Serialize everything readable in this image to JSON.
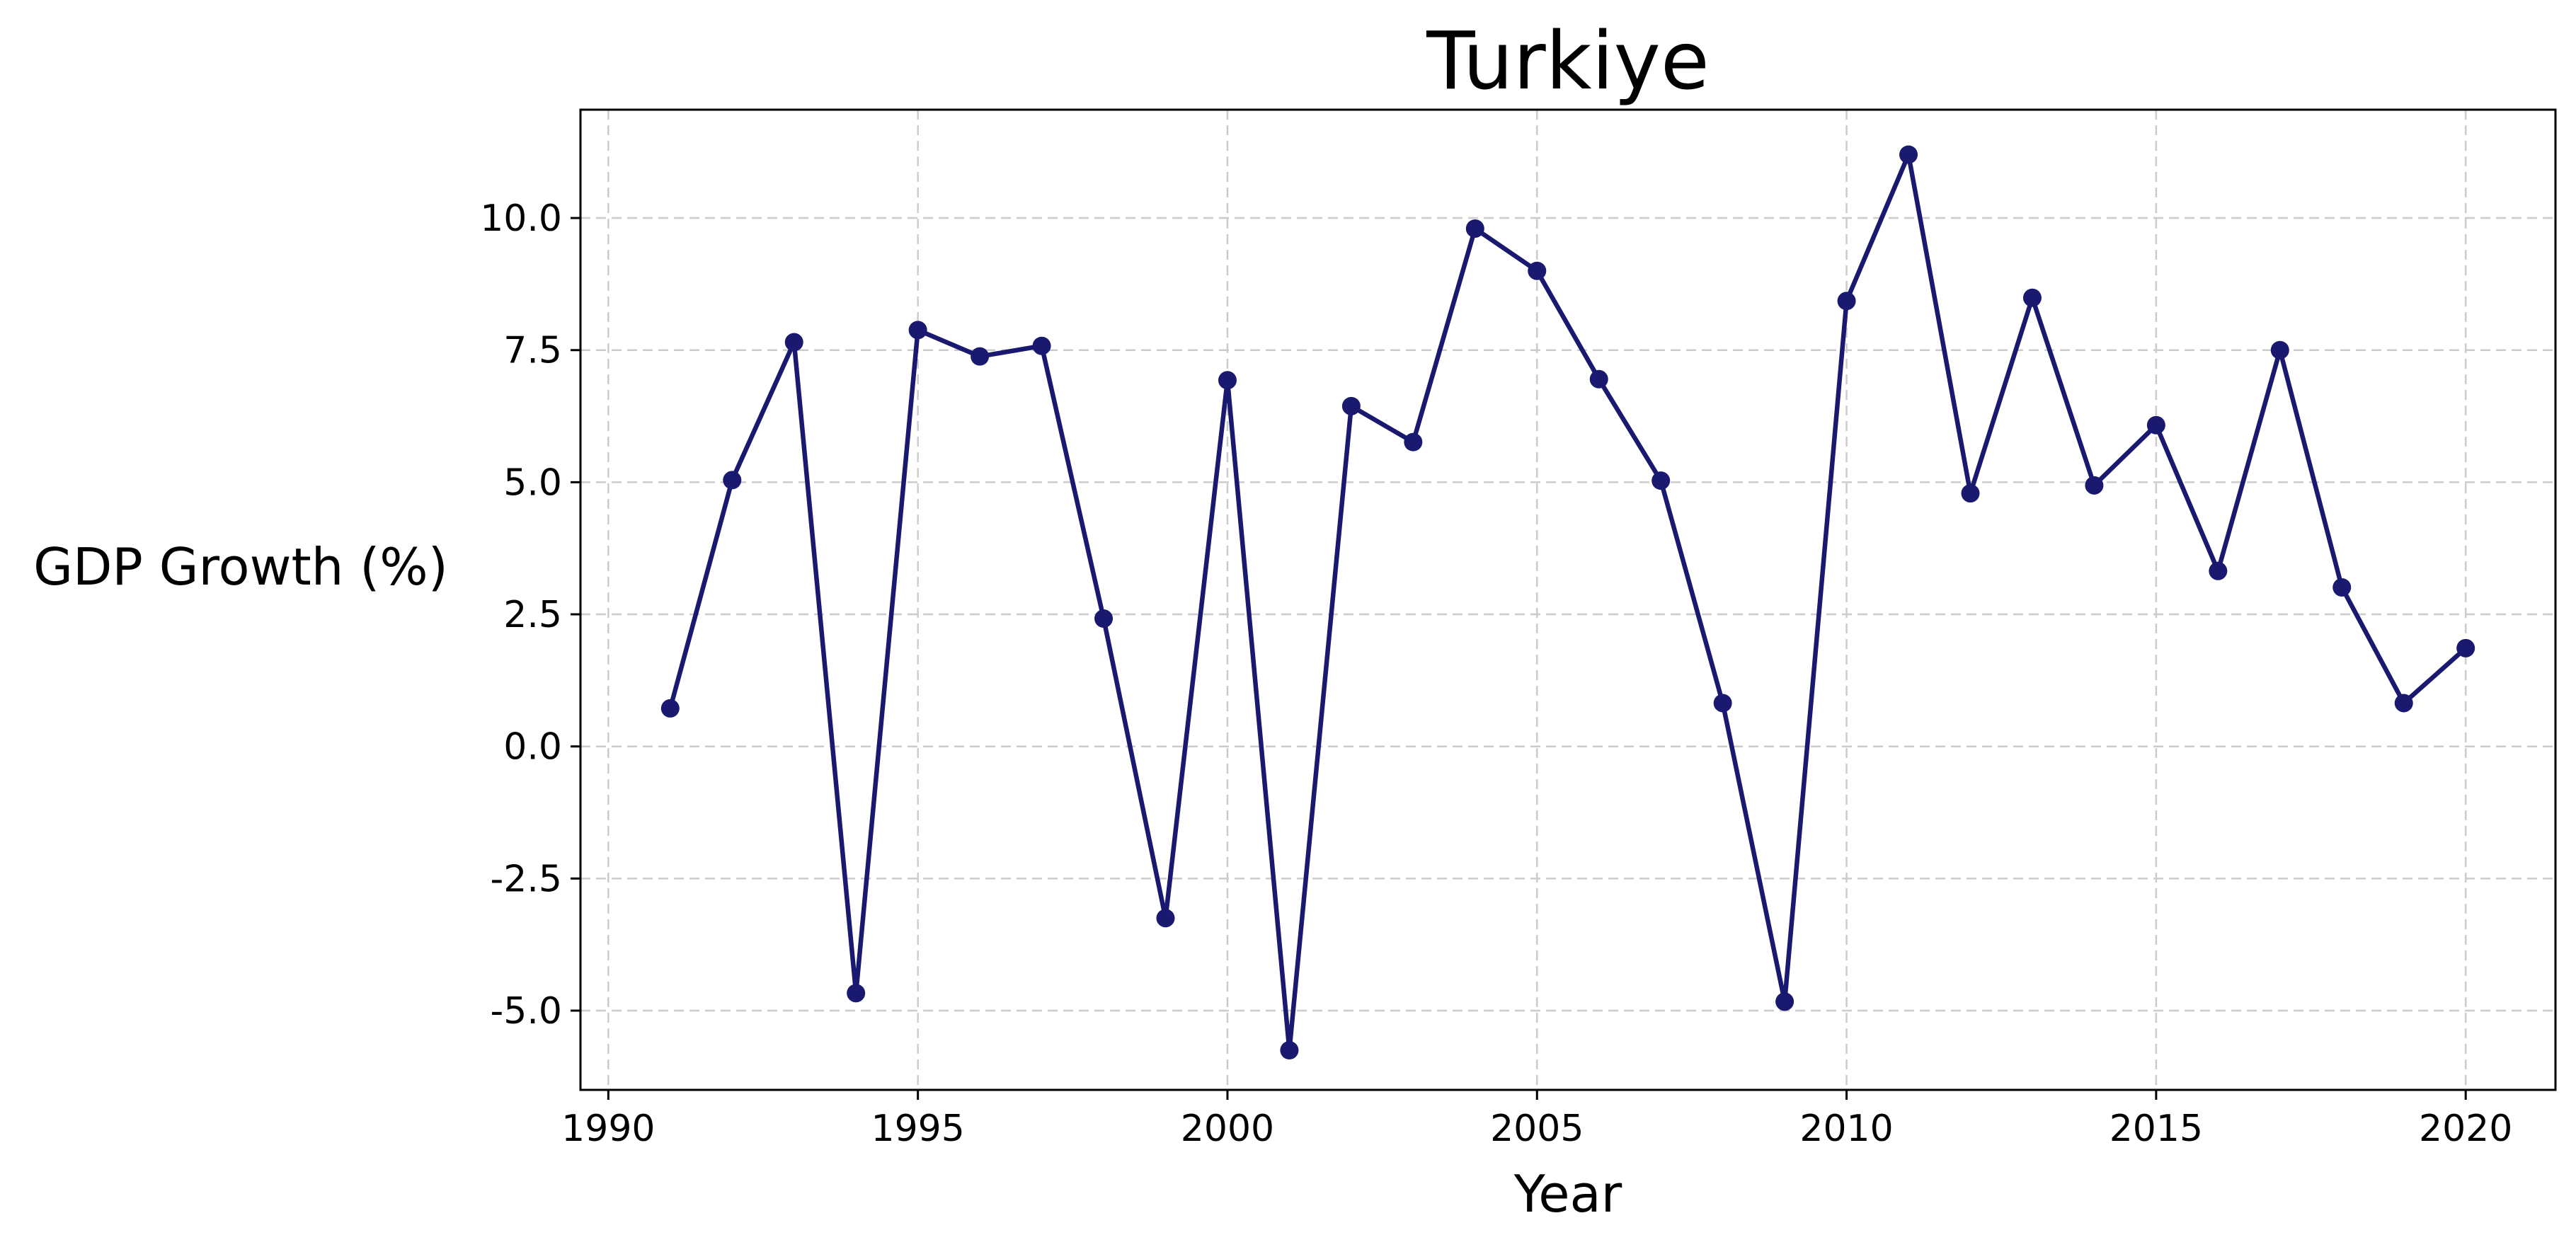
{
  "chart_data": {
    "type": "line",
    "title": "Turkiye",
    "xlabel": "Year",
    "ylabel": "GDP Growth (%)",
    "xlim": [
      1989.55,
      2021.45
    ],
    "ylim": [
      -6.5,
      12.05
    ],
    "xticks": [
      1990,
      1995,
      2000,
      2005,
      2010,
      2015,
      2020
    ],
    "xtick_labels": [
      "1990",
      "1995",
      "2000",
      "2005",
      "2010",
      "2015",
      "2020"
    ],
    "yticks": [
      -5.0,
      -2.5,
      0.0,
      2.5,
      5.0,
      7.5,
      10.0
    ],
    "ytick_labels": [
      "-5.0",
      "-2.5",
      "0.0",
      "2.5",
      "5.0",
      "7.5",
      "10.0"
    ],
    "grid": true,
    "line_color": "#191970",
    "x": [
      1991,
      1992,
      1993,
      1994,
      1995,
      1996,
      1997,
      1998,
      1999,
      2000,
      2001,
      2002,
      2003,
      2004,
      2005,
      2006,
      2007,
      2008,
      2009,
      2010,
      2011,
      2012,
      2013,
      2014,
      2015,
      2016,
      2017,
      2018,
      2019,
      2020
    ],
    "series": [
      {
        "values": [
          0.72,
          5.04,
          7.65,
          -4.67,
          7.88,
          7.38,
          7.58,
          2.42,
          -3.25,
          6.93,
          -5.75,
          6.44,
          5.76,
          9.8,
          9.0,
          6.95,
          5.03,
          0.82,
          -4.83,
          8.43,
          11.2,
          4.79,
          8.49,
          4.94,
          6.08,
          3.32,
          7.5,
          3.01,
          0.82,
          1.86
        ]
      }
    ]
  }
}
